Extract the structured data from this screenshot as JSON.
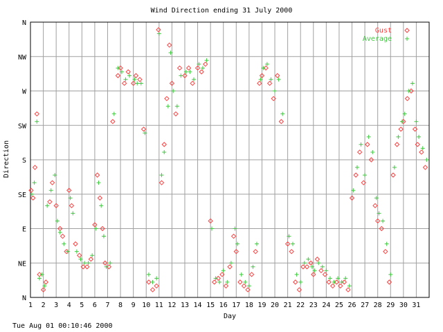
{
  "chart_data": {
    "type": "scatter",
    "title": "Wind Direction ending 31 July 2000",
    "xlabel": "Day",
    "ylabel": "Direction",
    "x_ticks": [
      "1",
      "2",
      "3",
      "4",
      "5",
      "6",
      "7",
      "8",
      "9",
      "10",
      "11",
      "12",
      "13",
      "14",
      "15",
      "16",
      "17",
      "18",
      "19",
      "20",
      "21",
      "22",
      "23",
      "24",
      "25",
      "26",
      "27",
      "28",
      "29",
      "30",
      "31"
    ],
    "y_ticks": [
      "N",
      "NE",
      "E",
      "SE",
      "S",
      "SW",
      "W",
      "NW",
      "N"
    ],
    "xlim": [
      1,
      32
    ],
    "ylim": [
      0,
      360
    ],
    "grid": true,
    "legend_position": "top-right",
    "series": [
      {
        "name": "Gust",
        "color": "#ff4040",
        "marker": "diamond",
        "points": [
          [
            1.05,
            140
          ],
          [
            1.2,
            130
          ],
          [
            1.35,
            170
          ],
          [
            1.5,
            240
          ],
          [
            1.7,
            30
          ],
          [
            2.0,
            10
          ],
          [
            2.2,
            20
          ],
          [
            2.5,
            125
          ],
          [
            2.7,
            150
          ],
          [
            3.0,
            120
          ],
          [
            3.3,
            90
          ],
          [
            3.5,
            80
          ],
          [
            3.8,
            60
          ],
          [
            4.0,
            140
          ],
          [
            4.2,
            120
          ],
          [
            4.5,
            70
          ],
          [
            4.8,
            55
          ],
          [
            5.1,
            40
          ],
          [
            5.4,
            40
          ],
          [
            5.7,
            50
          ],
          [
            6.0,
            95
          ],
          [
            6.2,
            160
          ],
          [
            6.4,
            130
          ],
          [
            6.6,
            90
          ],
          [
            6.8,
            45
          ],
          [
            7.1,
            40
          ],
          [
            7.4,
            230
          ],
          [
            7.8,
            290
          ],
          [
            8.0,
            300
          ],
          [
            8.3,
            280
          ],
          [
            8.6,
            295
          ],
          [
            9.0,
            280
          ],
          [
            9.2,
            290
          ],
          [
            9.5,
            285
          ],
          [
            9.8,
            220
          ],
          [
            10.2,
            20
          ],
          [
            10.5,
            10
          ],
          [
            10.8,
            15
          ],
          [
            10.95,
            350
          ],
          [
            11.2,
            150
          ],
          [
            11.4,
            200
          ],
          [
            11.6,
            260
          ],
          [
            11.8,
            330
          ],
          [
            12.0,
            280
          ],
          [
            12.3,
            240
          ],
          [
            12.6,
            300
          ],
          [
            13.0,
            290
          ],
          [
            13.3,
            300
          ],
          [
            13.6,
            280
          ],
          [
            14.0,
            300
          ],
          [
            14.3,
            295
          ],
          [
            14.6,
            305
          ],
          [
            15.0,
            100
          ],
          [
            15.3,
            20
          ],
          [
            15.6,
            25
          ],
          [
            15.9,
            30
          ],
          [
            16.2,
            15
          ],
          [
            16.5,
            40
          ],
          [
            16.8,
            80
          ],
          [
            17.0,
            60
          ],
          [
            17.3,
            20
          ],
          [
            17.6,
            15
          ],
          [
            17.9,
            10
          ],
          [
            18.2,
            30
          ],
          [
            18.5,
            60
          ],
          [
            18.8,
            280
          ],
          [
            19.0,
            290
          ],
          [
            19.3,
            300
          ],
          [
            19.6,
            280
          ],
          [
            19.9,
            260
          ],
          [
            20.2,
            290
          ],
          [
            20.5,
            230
          ],
          [
            21.0,
            70
          ],
          [
            21.3,
            60
          ],
          [
            21.6,
            20
          ],
          [
            21.9,
            10
          ],
          [
            22.2,
            40
          ],
          [
            22.5,
            40
          ],
          [
            22.8,
            45
          ],
          [
            23.0,
            30
          ],
          [
            23.3,
            50
          ],
          [
            23.6,
            35
          ],
          [
            23.9,
            30
          ],
          [
            24.2,
            20
          ],
          [
            24.5,
            15
          ],
          [
            24.8,
            20
          ],
          [
            25.1,
            15
          ],
          [
            25.4,
            20
          ],
          [
            25.7,
            10
          ],
          [
            26.0,
            130
          ],
          [
            26.3,
            160
          ],
          [
            26.6,
            190
          ],
          [
            26.9,
            150
          ],
          [
            27.2,
            200
          ],
          [
            27.5,
            180
          ],
          [
            27.8,
            120
          ],
          [
            28.0,
            100
          ],
          [
            28.3,
            90
          ],
          [
            28.6,
            60
          ],
          [
            28.9,
            20
          ],
          [
            29.2,
            160
          ],
          [
            29.5,
            200
          ],
          [
            29.8,
            220
          ],
          [
            30.0,
            230
          ],
          [
            30.3,
            260
          ],
          [
            30.6,
            270
          ],
          [
            30.9,
            220
          ],
          [
            31.1,
            200
          ],
          [
            31.4,
            190
          ],
          [
            31.7,
            170
          ]
        ]
      },
      {
        "name": "Average",
        "color": "#40c840",
        "marker": "plus",
        "points": [
          [
            1.1,
            135
          ],
          [
            1.3,
            150
          ],
          [
            1.5,
            230
          ],
          [
            1.7,
            25
          ],
          [
            1.9,
            30
          ],
          [
            2.1,
            15
          ],
          [
            2.3,
            120
          ],
          [
            2.6,
            140
          ],
          [
            2.9,
            160
          ],
          [
            3.1,
            100
          ],
          [
            3.3,
            85
          ],
          [
            3.6,
            70
          ],
          [
            3.9,
            60
          ],
          [
            4.1,
            130
          ],
          [
            4.3,
            110
          ],
          [
            4.6,
            60
          ],
          [
            4.9,
            50
          ],
          [
            5.2,
            45
          ],
          [
            5.5,
            45
          ],
          [
            5.8,
            55
          ],
          [
            6.1,
            90
          ],
          [
            6.3,
            150
          ],
          [
            6.5,
            120
          ],
          [
            6.7,
            80
          ],
          [
            6.9,
            40
          ],
          [
            7.2,
            45
          ],
          [
            7.5,
            240
          ],
          [
            7.8,
            300
          ],
          [
            8.1,
            295
          ],
          [
            8.4,
            285
          ],
          [
            8.7,
            290
          ],
          [
            9.1,
            285
          ],
          [
            9.3,
            280
          ],
          [
            9.6,
            280
          ],
          [
            9.9,
            215
          ],
          [
            10.2,
            30
          ],
          [
            10.5,
            20
          ],
          [
            10.8,
            25
          ],
          [
            11.0,
            345
          ],
          [
            11.2,
            160
          ],
          [
            11.4,
            190
          ],
          [
            11.7,
            250
          ],
          [
            11.9,
            320
          ],
          [
            12.1,
            270
          ],
          [
            12.4,
            250
          ],
          [
            12.7,
            290
          ],
          [
            13.1,
            295
          ],
          [
            13.4,
            295
          ],
          [
            13.7,
            285
          ],
          [
            14.1,
            305
          ],
          [
            14.4,
            300
          ],
          [
            14.7,
            310
          ],
          [
            15.1,
            90
          ],
          [
            15.4,
            25
          ],
          [
            15.7,
            20
          ],
          [
            16.0,
            35
          ],
          [
            16.3,
            20
          ],
          [
            16.6,
            45
          ],
          [
            16.9,
            90
          ],
          [
            17.1,
            70
          ],
          [
            17.4,
            30
          ],
          [
            17.7,
            20
          ],
          [
            18.0,
            15
          ],
          [
            18.3,
            40
          ],
          [
            18.6,
            70
          ],
          [
            18.9,
            285
          ],
          [
            19.1,
            300
          ],
          [
            19.4,
            305
          ],
          [
            19.7,
            285
          ],
          [
            20.0,
            270
          ],
          [
            20.3,
            285
          ],
          [
            20.6,
            240
          ],
          [
            21.1,
            80
          ],
          [
            21.4,
            70
          ],
          [
            21.7,
            30
          ],
          [
            22.0,
            20
          ],
          [
            22.3,
            45
          ],
          [
            22.6,
            50
          ],
          [
            22.9,
            40
          ],
          [
            23.1,
            35
          ],
          [
            23.4,
            45
          ],
          [
            23.7,
            40
          ],
          [
            24.0,
            35
          ],
          [
            24.3,
            25
          ],
          [
            24.6,
            20
          ],
          [
            24.9,
            25
          ],
          [
            25.2,
            20
          ],
          [
            25.5,
            25
          ],
          [
            25.8,
            15
          ],
          [
            26.1,
            140
          ],
          [
            26.4,
            170
          ],
          [
            26.7,
            200
          ],
          [
            27.0,
            160
          ],
          [
            27.3,
            210
          ],
          [
            27.6,
            190
          ],
          [
            27.9,
            130
          ],
          [
            28.1,
            110
          ],
          [
            28.4,
            100
          ],
          [
            28.7,
            70
          ],
          [
            29.0,
            30
          ],
          [
            29.3,
            170
          ],
          [
            29.6,
            210
          ],
          [
            29.9,
            230
          ],
          [
            30.1,
            240
          ],
          [
            30.4,
            270
          ],
          [
            30.7,
            280
          ],
          [
            31.0,
            230
          ],
          [
            31.2,
            210
          ],
          [
            31.5,
            195
          ],
          [
            31.8,
            180
          ]
        ]
      }
    ]
  },
  "footer": {
    "timestamp": "Tue Aug 01 00:10:46 2000"
  }
}
